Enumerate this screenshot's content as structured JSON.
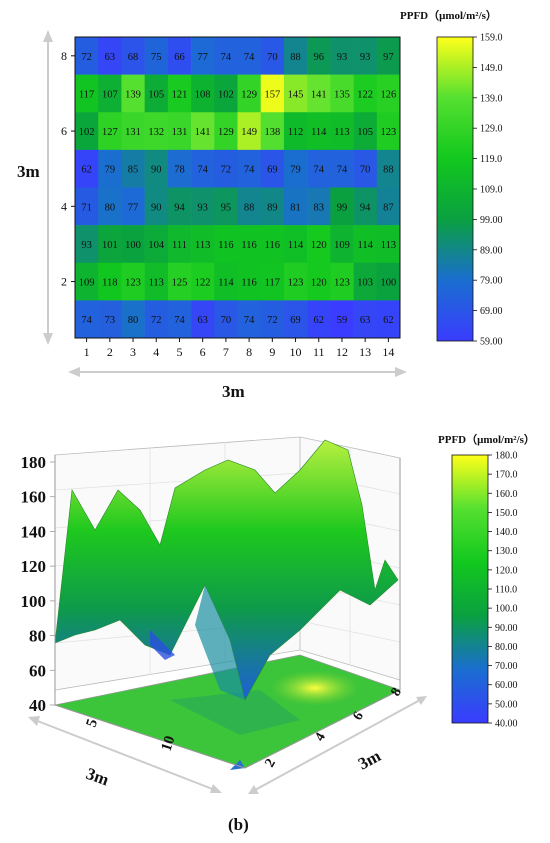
{
  "chart_data": [
    {
      "type": "heatmap",
      "title": "PPFD（μmol/m²/s）",
      "xlabel": "3m",
      "ylabel": "3m",
      "x_ticks": [
        "1",
        "2",
        "3",
        "4",
        "5",
        "6",
        "7",
        "8",
        "9",
        "10",
        "11",
        "12",
        "13",
        "14"
      ],
      "y_ticks": [
        "2",
        "4",
        "6",
        "8"
      ],
      "rows_top_to_bottom": [
        [
          72,
          63,
          68,
          75,
          66,
          77,
          74,
          74,
          70,
          88,
          96,
          93,
          93,
          97
        ],
        [
          117,
          107,
          139,
          105,
          121,
          108,
          102,
          129,
          157,
          145,
          141,
          135,
          122,
          126
        ],
        [
          102,
          127,
          131,
          132,
          131,
          141,
          129,
          149,
          138,
          112,
          114,
          113,
          105,
          123
        ],
        [
          62,
          79,
          85,
          90,
          78,
          74,
          72,
          74,
          69,
          79,
          74,
          74,
          70,
          88
        ],
        [
          71,
          80,
          77,
          90,
          94,
          93,
          95,
          88,
          89,
          81,
          83,
          99,
          94,
          87
        ],
        [
          93,
          101,
          100,
          104,
          111,
          113,
          116,
          116,
          116,
          114,
          120,
          109,
          114,
          113
        ],
        [
          109,
          118,
          123,
          113,
          125,
          122,
          114,
          116,
          117,
          123,
          120,
          123,
          103,
          100
        ],
        [
          74,
          73,
          80,
          72,
          74,
          63,
          70,
          74,
          72,
          69,
          62,
          59,
          63,
          62
        ]
      ],
      "colorbar": {
        "min": 59.0,
        "max": 159.0,
        "ticks": [
          "159.0",
          "149.0",
          "139.0",
          "129.0",
          "119.0",
          "109.0",
          "99.00",
          "89.00",
          "79.00",
          "69.00",
          "59.00"
        ]
      }
    },
    {
      "type": "surface",
      "title": "PPFD（μmol/m²/s）",
      "xlabel": "3m",
      "ylabel": "3m",
      "z_ticks": [
        "40",
        "60",
        "80",
        "100",
        "120",
        "140",
        "160",
        "180"
      ],
      "x_ticks": [
        "5",
        "10"
      ],
      "y_ticks": [
        "2",
        "4",
        "6",
        "8"
      ],
      "colorbar": {
        "min": 40.0,
        "max": 180.0,
        "ticks": [
          "180.0",
          "170.0",
          "160.0",
          "150.0",
          "140.0",
          "130.0",
          "120.0",
          "110.0",
          "100.0",
          "90.00",
          "80.00",
          "70.00",
          "60.00",
          "50.00",
          "40.00"
        ]
      },
      "panel_label": "(b)"
    }
  ]
}
